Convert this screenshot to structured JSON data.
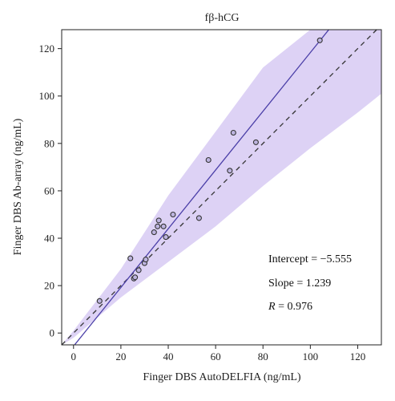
{
  "chart_data": {
    "type": "scatter",
    "title": "fβ-hCG",
    "xlabel": "Finger DBS AutoDELFIA (ng/mL)",
    "ylabel": "Finger DBS Ab-array (ng/mL)",
    "xlim": [
      -5,
      130
    ],
    "ylim": [
      -5,
      128
    ],
    "x_ticks": [
      0,
      20,
      40,
      60,
      80,
      100,
      120
    ],
    "y_ticks": [
      0,
      20,
      40,
      60,
      80,
      100,
      120
    ],
    "grid": false,
    "points": [
      {
        "x": 11,
        "y": 13.5
      },
      {
        "x": 24,
        "y": 31.5
      },
      {
        "x": 25.5,
        "y": 23
      },
      {
        "x": 26,
        "y": 23.5
      },
      {
        "x": 27.5,
        "y": 26.5
      },
      {
        "x": 30,
        "y": 29.5
      },
      {
        "x": 30.5,
        "y": 31
      },
      {
        "x": 34,
        "y": 42.5
      },
      {
        "x": 35.5,
        "y": 45
      },
      {
        "x": 36,
        "y": 47.5
      },
      {
        "x": 38,
        "y": 45
      },
      {
        "x": 39,
        "y": 40.5
      },
      {
        "x": 42,
        "y": 50
      },
      {
        "x": 53,
        "y": 48.5
      },
      {
        "x": 57,
        "y": 73
      },
      {
        "x": 66,
        "y": 68.5
      },
      {
        "x": 67.5,
        "y": 84.5
      },
      {
        "x": 77,
        "y": 80.5
      },
      {
        "x": 104,
        "y": 123.5
      }
    ],
    "regression_line": {
      "intercept": -5.555,
      "slope": 1.239
    },
    "identity_line": {
      "intercept": 0,
      "slope": 1
    },
    "confidence_band": {
      "x": [
        -5,
        0,
        20,
        40,
        60,
        80,
        100,
        120,
        130
      ],
      "lower": [
        -5,
        -2,
        15,
        30,
        45,
        62,
        78,
        93,
        101
      ],
      "upper": [
        -5,
        1,
        27,
        58,
        85,
        112,
        128,
        128,
        128
      ]
    },
    "annotations": {
      "intercept": "Intercept = −5.555",
      "slope": "Slope = 1.239",
      "r_label": "R",
      "r_value": " = 0.976"
    },
    "colors": {
      "band": "#ddd2f5",
      "regression": "#4b3fa8",
      "identity": "#333333",
      "point_stroke": "#333333",
      "point_fill": "#bdb4df",
      "axis": "#222222"
    }
  }
}
